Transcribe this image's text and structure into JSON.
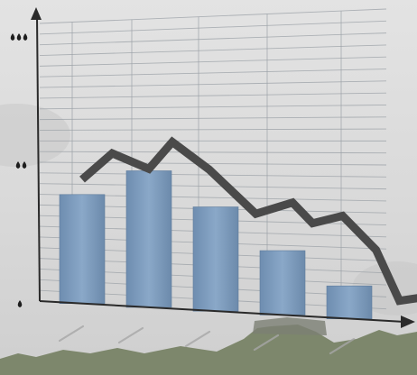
{
  "chart_data": {
    "type": "bar",
    "title": "",
    "xlabel": "",
    "ylabel": "",
    "categories": [
      "",
      "",
      "",
      "",
      ""
    ],
    "bar_values": [
      58,
      71,
      53,
      32,
      16
    ],
    "line_x": [
      0.0,
      0.45,
      1.0,
      1.35,
      1.9,
      2.6,
      3.15,
      3.45,
      3.9,
      4.4,
      4.75,
      5.4
    ],
    "line_values": [
      66,
      80,
      72,
      86,
      72,
      50,
      56,
      46,
      50,
      34,
      10,
      14
    ],
    "ylim": [
      0,
      150
    ],
    "y_tick_glyphs": [
      {
        "value": 0,
        "glyph": "▲"
      },
      {
        "value": 75,
        "glyph": "▲▲"
      },
      {
        "value": 150,
        "glyph": "▲▲▲"
      }
    ],
    "grid": true,
    "colors": {
      "bar": "#7f9fc1",
      "line": "#4a4a4a",
      "axis": "#2a2a2a",
      "grid": "#9aa0a6",
      "sky": "#d7d8d9",
      "ground": "#6f7a5b"
    }
  }
}
